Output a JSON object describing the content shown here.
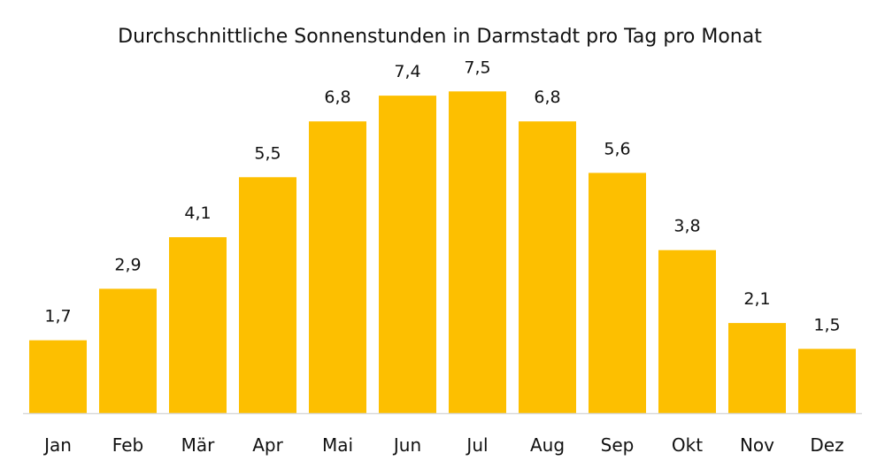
{
  "chart_data": {
    "type": "bar",
    "title": "Durchschnittliche Sonnenstunden in Darmstadt pro Tag pro Monat",
    "xlabel": "",
    "ylabel": "",
    "categories": [
      "Jan",
      "Feb",
      "Mär",
      "Apr",
      "Mai",
      "Jun",
      "Jul",
      "Aug",
      "Sep",
      "Okt",
      "Nov",
      "Dez"
    ],
    "values": [
      1.7,
      2.9,
      4.1,
      5.5,
      6.8,
      7.4,
      7.5,
      6.8,
      5.6,
      3.8,
      2.1,
      1.5
    ],
    "value_labels": [
      "1,7",
      "2,9",
      "4,1",
      "5,5",
      "6,8",
      "7,4",
      "7,5",
      "6,8",
      "5,6",
      "3,8",
      "2,1",
      "1,5"
    ],
    "ylim": [
      0,
      8
    ],
    "grid": false,
    "legend": "none",
    "colors": {
      "bar": "#FDBF00",
      "baseline": "#d9d9d9",
      "text": "#111111"
    }
  }
}
